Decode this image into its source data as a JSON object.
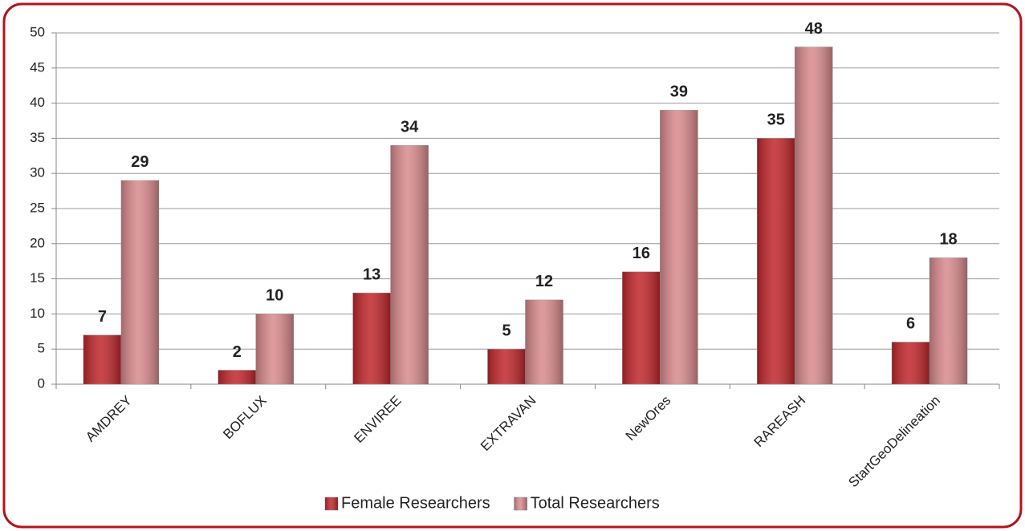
{
  "chart_data": {
    "type": "bar",
    "categories": [
      "AMDREY",
      "BOFLUX",
      "ENVIREE",
      "EXTRAVAN",
      "NewOres",
      "RAREASH",
      "StartGeoDelineation"
    ],
    "series": [
      {
        "name": "Female Researchers",
        "color": "#c0262b",
        "values": [
          7,
          2,
          13,
          5,
          16,
          35,
          6
        ]
      },
      {
        "name": "Total Researchers",
        "color": "#d98a8d",
        "values": [
          29,
          10,
          34,
          12,
          39,
          48,
          18
        ]
      }
    ],
    "ylim": [
      0,
      50
    ],
    "yticks": [
      0,
      5,
      10,
      15,
      20,
      25,
      30,
      35,
      40,
      45,
      50
    ],
    "grid": true,
    "legend": "bottom"
  }
}
